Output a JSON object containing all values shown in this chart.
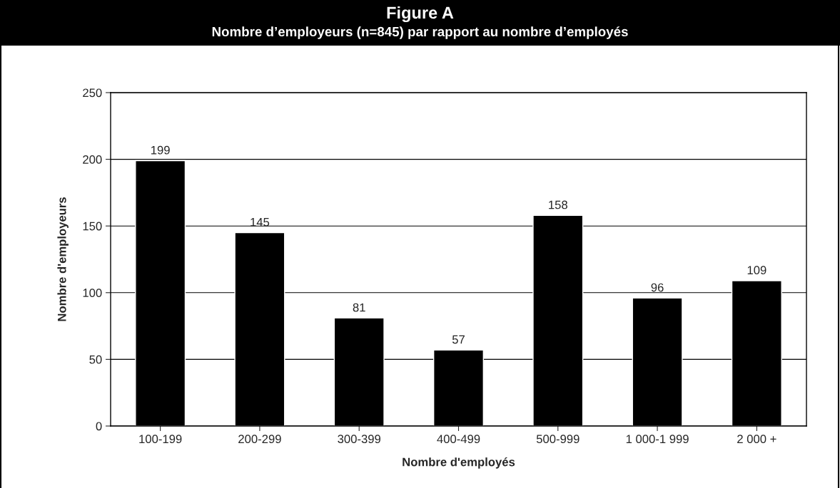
{
  "chart_data": {
    "type": "bar",
    "title": "Figure A",
    "subtitle": "Nombre d’employeurs (n=845) par rapport au nombre d’employés",
    "xlabel": "Nombre d'employés",
    "ylabel": "Nombre d'employeurs",
    "categories": [
      "100-199",
      "200-299",
      "300-399",
      "400-499",
      "500-999",
      "1 000-1 999",
      "2 000 +"
    ],
    "series": [
      {
        "color": "#000000",
        "values": [
          199,
          145,
          81,
          57,
          158,
          96,
          109
        ]
      }
    ],
    "ylim": [
      0,
      250
    ],
    "yticks": [
      0,
      50,
      100,
      150,
      200,
      250
    ],
    "grid": "y",
    "data_labels": true
  }
}
